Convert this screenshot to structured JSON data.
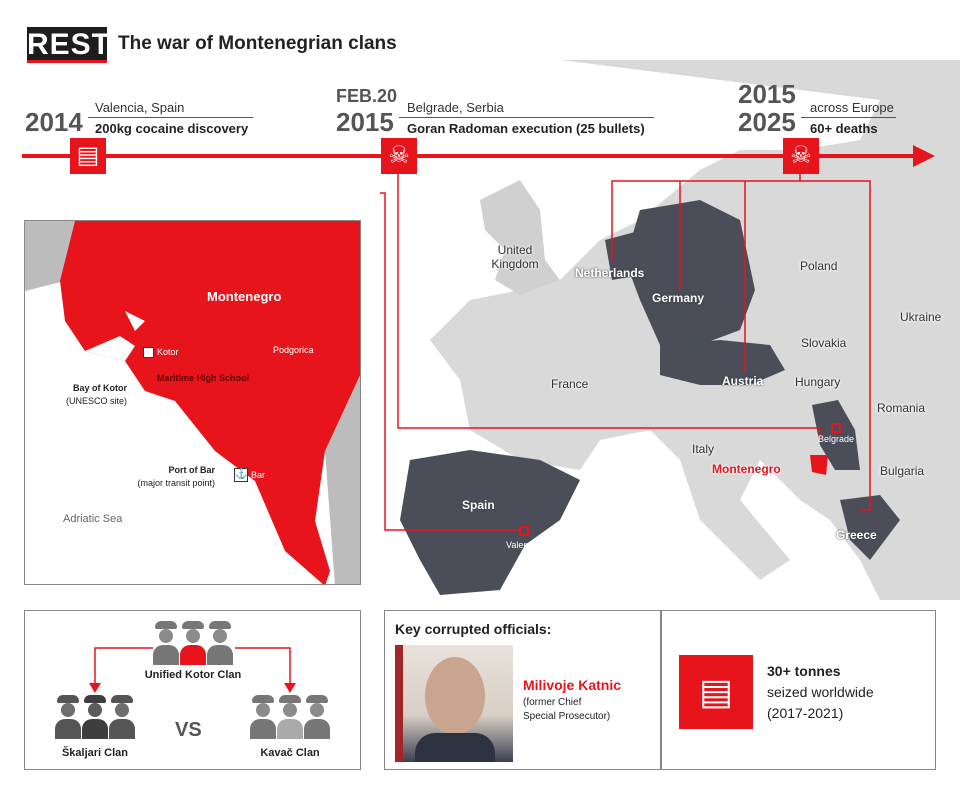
{
  "header": {
    "logo": "REST",
    "title": "The war of Montenegrian clans"
  },
  "timeline": [
    {
      "date_top": "",
      "year": "2014",
      "place": "Valencia, Spain",
      "event": "200kg cocaine discovery",
      "icon": "cocaine-bag-icon"
    },
    {
      "date_top": "FEB.20",
      "year": "2015",
      "place": "Belgrade, Serbia",
      "event": "Goran Radoman execution (25 bullets)",
      "icon": "skull-icon"
    },
    {
      "date_top": "2015",
      "year": "2025",
      "place": "across Europe",
      "event": "60+ deaths",
      "icon": "skull-icon"
    }
  ],
  "map": {
    "countries": [
      "United Kingdom",
      "Netherlands",
      "Germany",
      "Poland",
      "Ukraine",
      "France",
      "Slovakia",
      "Hungary",
      "Austria",
      "Romania",
      "Italy",
      "Bulgaria",
      "Spain",
      "Greece"
    ],
    "montenegro": "Montenegro",
    "cities": [
      "Belgrade",
      "Valencia"
    ]
  },
  "inset": {
    "country": "Montenegro",
    "kotor": "Kotor",
    "school": "Maritime High School",
    "podgorica": "Podgorica",
    "bay": "Bay of Kotor",
    "bay_note": "(UNESCO site)",
    "port": "Port of Bar",
    "port_note": "(major transit point)",
    "bar": "Bar",
    "sea": "Adriatic Sea"
  },
  "clans": {
    "unified": "Unified Kotor Clan",
    "left": "Škaljari Clan",
    "vs": "VS",
    "right": "Kavač Clan"
  },
  "officials": {
    "heading": "Key corrupted officials:",
    "name": "Milivoje Katnic",
    "role1": "(former Chief",
    "role2": "Special Prosecutor)"
  },
  "seized": {
    "amount": "30+ tonnes",
    "line2": "seized worldwide",
    "period": "(2017-2021)"
  },
  "colors": {
    "accent": "#e8141b",
    "dark_country": "#4b4e58",
    "land": "#d6d6d6"
  }
}
